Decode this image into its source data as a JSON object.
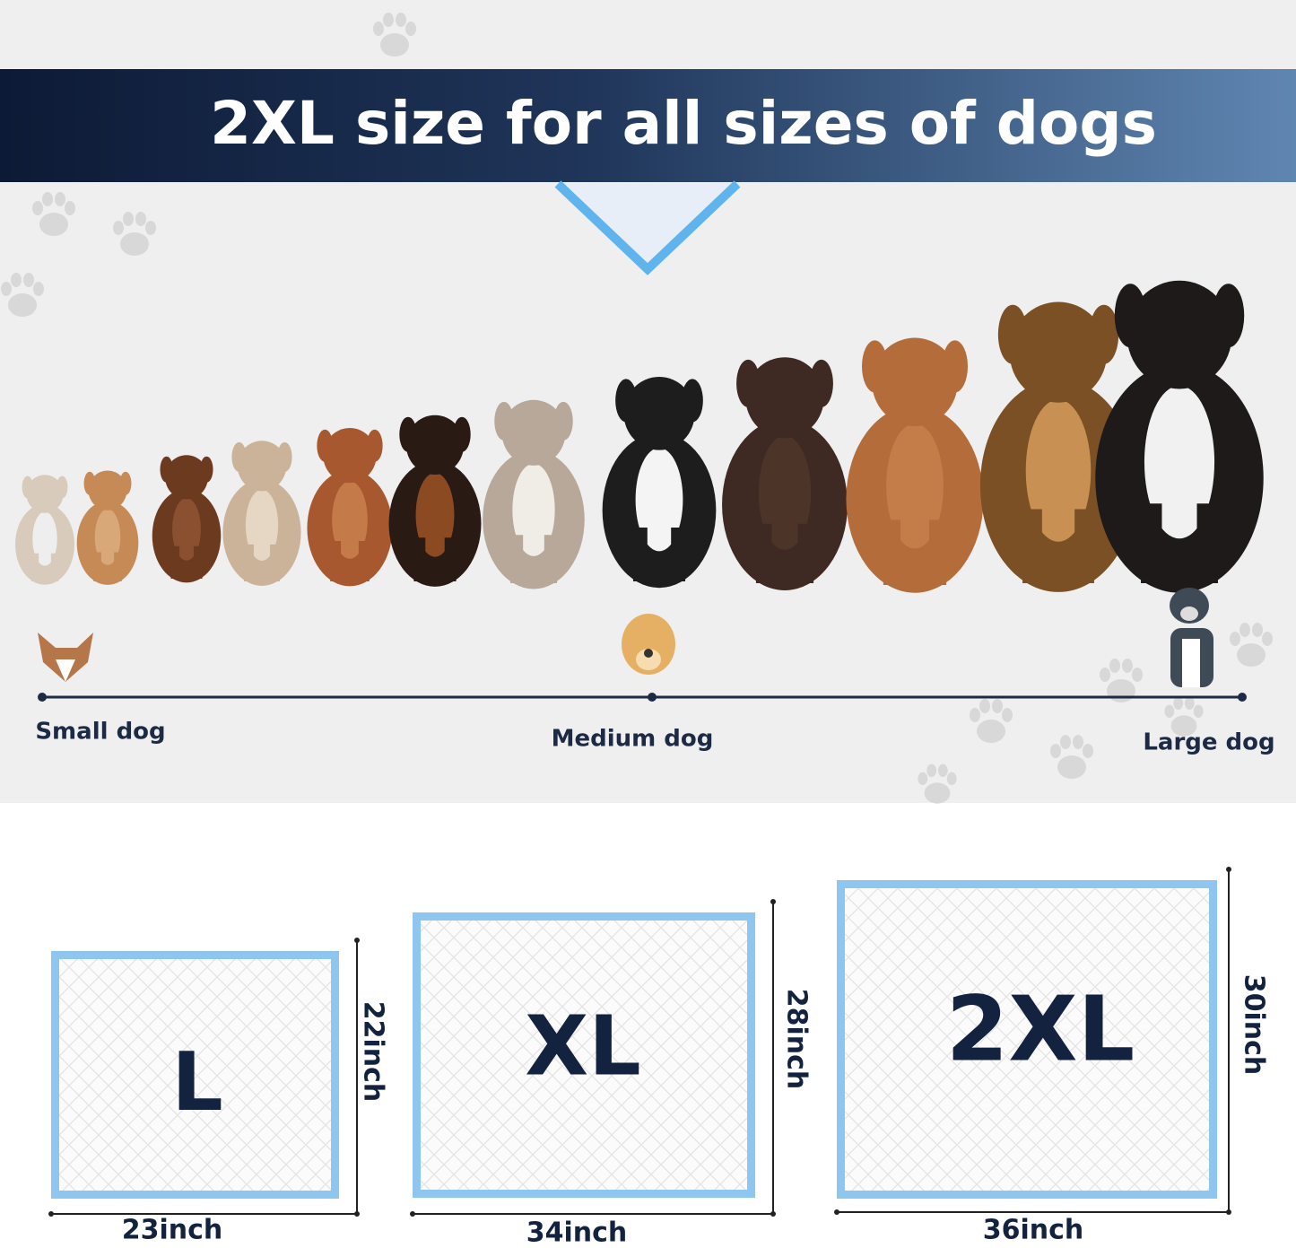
{
  "header": {
    "title": "2XL size for all sizes of dogs"
  },
  "size_scale": {
    "labels": [
      "Small dog",
      "Medium dog",
      "Large dog"
    ]
  },
  "pads": [
    {
      "size": "L",
      "width": "23inch",
      "height": "22inch"
    },
    {
      "size": "XL",
      "width": "34inch",
      "height": "28inch"
    },
    {
      "size": "2XL",
      "width": "36inch",
      "height": "30inch"
    }
  ]
}
